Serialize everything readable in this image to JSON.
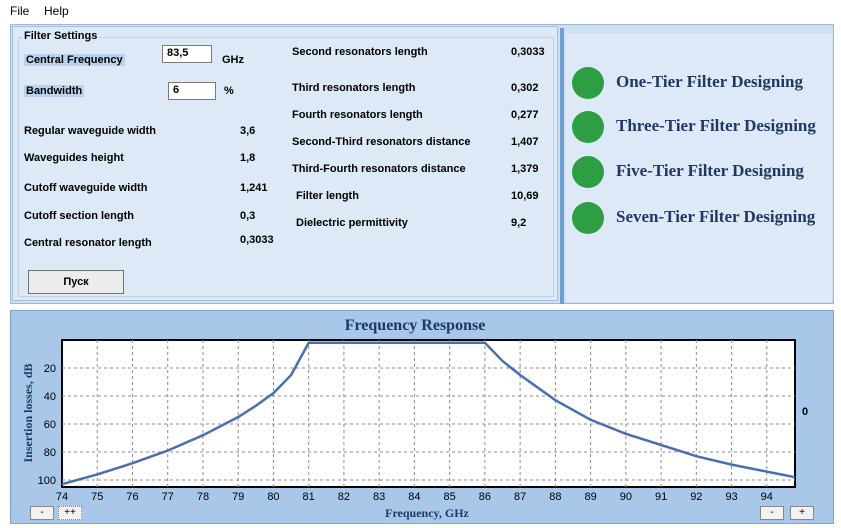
{
  "menu": {
    "file": "File",
    "help": "Help"
  },
  "settings": {
    "title": "Filter Settings",
    "central_frequency": {
      "label": "Central Frequency",
      "value": "83,5",
      "unit": "GHz"
    },
    "bandwidth": {
      "label": "Bandwidth",
      "value": "6",
      "unit": "%"
    },
    "left_params": [
      {
        "label": "Regular waveguide width",
        "value": "3,6"
      },
      {
        "label": "Waveguides height",
        "value": "1,8"
      },
      {
        "label": "Cutoff waveguide width",
        "value": "1,241"
      },
      {
        "label": "Cutoff section length",
        "value": "0,3"
      },
      {
        "label": "Central resonator length",
        "value": "0,3033"
      }
    ],
    "right_params": [
      {
        "label": "Second resonators length",
        "value": "0,3033"
      },
      {
        "label": "Third resonators  length",
        "value": "0,302"
      },
      {
        "label": "Fourth resonators length",
        "value": "0,277"
      },
      {
        "label": "Second-Third resonators distance",
        "value": "1,407"
      },
      {
        "label": "Third-Fourth resonators distance",
        "value": "1,379"
      },
      {
        "label": "Filter length",
        "value": "10,69"
      },
      {
        "label": "Dielectric permittivity",
        "value": "9,2"
      }
    ],
    "run_button": "Пуск"
  },
  "tiers": [
    {
      "label": "One-Tier Filter Designing"
    },
    {
      "label": "Three-Tier Filter Designing"
    },
    {
      "label": "Five-Tier Filter Designing"
    },
    {
      "label": "Seven-Tier Filter Designing"
    }
  ],
  "controls": {
    "zoom_out": "-",
    "zoom_in": "+",
    "scroll_left": "-",
    "scroll_mid": "++"
  },
  "colors": {
    "accent": "#2e9e44",
    "title_text": "#1f3864",
    "line": "#4a6fb0",
    "panel": "#dde9f6"
  },
  "chart_data": {
    "type": "line",
    "title": "Frequency Response",
    "xlabel": "Frequency, GHz",
    "ylabel": "Insertion losses, dB",
    "xlim": [
      74,
      94.8
    ],
    "ylim": [
      0,
      105
    ],
    "y_inverted": true,
    "x_ticks": [
      74,
      75,
      76,
      77,
      78,
      79,
      80,
      81,
      82,
      83,
      84,
      85,
      86,
      87,
      88,
      89,
      90,
      91,
      92,
      93,
      94
    ],
    "y_ticks": [
      20,
      40,
      60,
      80,
      100
    ],
    "right_axis_label": "0",
    "grid": true,
    "series": [
      {
        "x": [
          74,
          75,
          76,
          77,
          78,
          79,
          79.5,
          80,
          80.5,
          81,
          86,
          86.5,
          87,
          88,
          89,
          90,
          91,
          92,
          93,
          94,
          94.8
        ],
        "y": [
          103,
          96,
          88,
          79,
          68,
          55,
          47,
          38,
          25,
          2,
          2,
          15,
          25,
          43,
          57,
          67,
          75,
          83,
          89,
          94,
          98
        ]
      }
    ]
  }
}
